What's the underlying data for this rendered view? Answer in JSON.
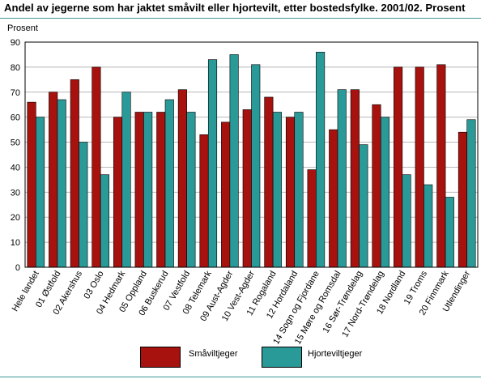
{
  "title": "Andel av jegerne som har jaktet småvilt eller hjortevilt, etter bostedsfylke. 2001/02. Prosent",
  "colors": {
    "smaavilt": "#a7120e",
    "hjortevilt": "#2a9a98",
    "rule": "#3a9a94"
  },
  "chart_data": {
    "type": "bar",
    "title": "Andel av jegerne som har jaktet småvilt eller hjortevilt, etter bostedsfylke. 2001/02. Prosent",
    "ylabel": "Prosent",
    "xlabel": "",
    "ylim": [
      0,
      90
    ],
    "yticks": [
      0,
      10,
      20,
      30,
      40,
      50,
      60,
      70,
      80,
      90
    ],
    "grid": true,
    "legend_position": "bottom",
    "categories": [
      "Hele landet",
      "01 Østfold",
      "02 Akershus",
      "03 Oslo",
      "04 Hedmark",
      "05 Oppland",
      "06 Buskerud",
      "07 Vestfold",
      "08 Telemark",
      "09 Aust-Agder",
      "10 Vest-Agder",
      "11 Rogaland",
      "12 Hordaland",
      "14 Sogn og Fjordane",
      "15 Møre og Romsdal",
      "16 Sør-Trøndelag",
      "17 Nord-Trøndelag",
      "18 Nordland",
      "19 Troms",
      "20 Finnmark",
      "Utlendinger"
    ],
    "series": [
      {
        "name": "Småviltjeger",
        "values": [
          66,
          70,
          75,
          80,
          60,
          62,
          62,
          71,
          53,
          58,
          63,
          68,
          60,
          39,
          55,
          71,
          65,
          80,
          80,
          81,
          54
        ]
      },
      {
        "name": "Hjorteviltjeger",
        "values": [
          60,
          67,
          50,
          37,
          70,
          62,
          67,
          62,
          83,
          85,
          81,
          62,
          62,
          86,
          71,
          49,
          60,
          37,
          33,
          28,
          59
        ]
      }
    ]
  }
}
